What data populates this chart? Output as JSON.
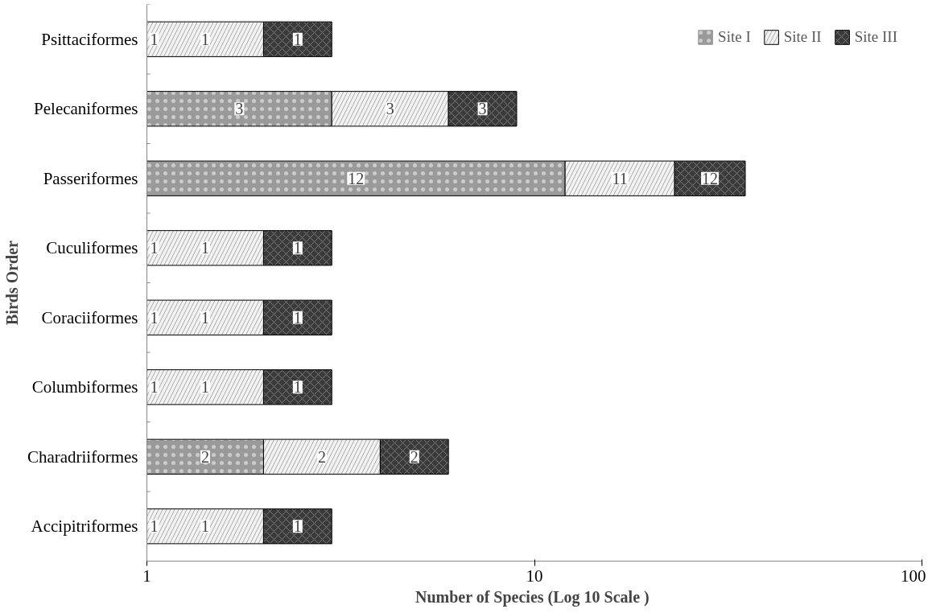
{
  "chart_data": {
    "type": "bar",
    "orientation": "horizontal",
    "stacked": true,
    "log": "x",
    "xlabel": "Number of Species (Log  10 Scale )",
    "ylabel": "Birds Order",
    "categories": [
      "Psittaciformes",
      "Pelecaniformes",
      "Passeriformes",
      "Cuculiformes",
      "Coraciiformes",
      "Columbiformes",
      "Charadriiformes",
      "Accipitriformes"
    ],
    "series": [
      {
        "name": "Site I",
        "color": "#9a9a9a",
        "values": [
          1,
          3,
          12,
          1,
          1,
          1,
          2,
          1
        ]
      },
      {
        "name": "Site II",
        "color": "#f2f2f2",
        "values": [
          1,
          3,
          11,
          1,
          1,
          1,
          2,
          1
        ]
      },
      {
        "name": "Site III",
        "color": "#3a3a3a",
        "values": [
          1,
          3,
          12,
          1,
          1,
          1,
          2,
          1
        ]
      }
    ],
    "xlim": [
      1,
      100
    ],
    "xticks": [
      1,
      10,
      100
    ],
    "grid": false,
    "legend": "top right",
    "data_labels": true
  }
}
